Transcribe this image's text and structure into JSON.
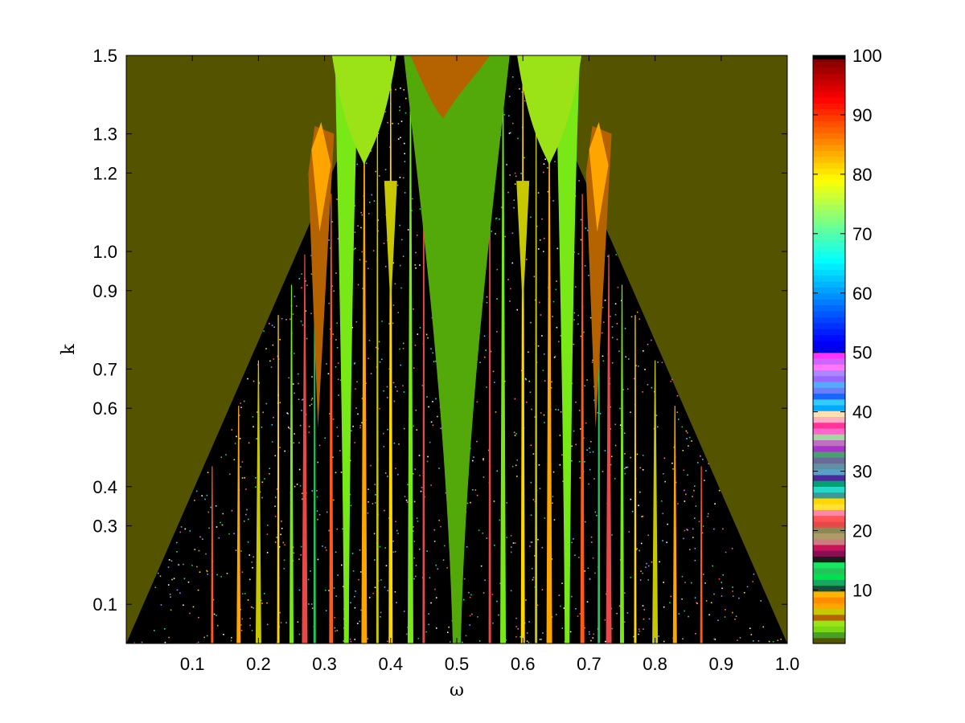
{
  "chart_data": {
    "type": "heatmap",
    "title": "",
    "xlabel": "ω",
    "ylabel": "k",
    "xlim": [
      0,
      1.0
    ],
    "ylim": [
      0,
      1.5
    ],
    "x_ticks": [
      {
        "value": 0.1,
        "label": "0.1"
      },
      {
        "value": 0.2,
        "label": "0.2"
      },
      {
        "value": 0.3,
        "label": "0.3"
      },
      {
        "value": 0.4,
        "label": "0.4"
      },
      {
        "value": 0.5,
        "label": "0.5"
      },
      {
        "value": 0.6,
        "label": "0.6"
      },
      {
        "value": 0.7,
        "label": "0.7"
      },
      {
        "value": 0.8,
        "label": "0.8"
      },
      {
        "value": 0.9,
        "label": "0.9"
      },
      {
        "value": 1.0,
        "label": "1.0"
      }
    ],
    "y_ticks": [
      {
        "value": 0.1,
        "label": "0.1"
      },
      {
        "value": 0.3,
        "label": "0.3"
      },
      {
        "value": 0.4,
        "label": "0.4"
      },
      {
        "value": 0.6,
        "label": "0.6"
      },
      {
        "value": 0.7,
        "label": "0.7"
      },
      {
        "value": 0.9,
        "label": "0.9"
      },
      {
        "value": 1.0,
        "label": "1.0"
      },
      {
        "value": 1.2,
        "label": "1.2"
      },
      {
        "value": 1.3,
        "label": "1.3"
      },
      {
        "value": 1.5,
        "label": "1.5"
      }
    ],
    "grid": false,
    "colorbar": {
      "range": [
        1,
        100
      ],
      "ticks": [
        {
          "value": 10,
          "label": "10"
        },
        {
          "value": 20,
          "label": "20"
        },
        {
          "value": 30,
          "label": "30"
        },
        {
          "value": 40,
          "label": "40"
        },
        {
          "value": 50,
          "label": "50"
        },
        {
          "value": 60,
          "label": "60"
        },
        {
          "value": 70,
          "label": "70"
        },
        {
          "value": 80,
          "label": "80"
        },
        {
          "value": 90,
          "label": "90"
        },
        {
          "value": 100,
          "label": "100"
        }
      ],
      "low_band_colors": [
        "#535300",
        "#47a025",
        "#79d811",
        "#9be316",
        "#b46300",
        "#c8c800",
        "#ffa500",
        "#ff8c00",
        "#ffb400",
        "#13503d",
        "#16a85c",
        "#00e050",
        "#23c45a",
        "#18e660",
        "#1c1c1c",
        "#8a0e54",
        "#c8135a",
        "#cb7c7c",
        "#b09a68",
        "#8a8a52",
        "#e84848",
        "#ff5555",
        "#ff88aa",
        "#ffe033",
        "#ffd700",
        "#3a9a9a",
        "#26d8c8",
        "#00a070",
        "#4b2a9a",
        "#58a0c8",
        "#5f8fa0",
        "#6a6a9a",
        "#4aa070",
        "#aa33cc",
        "#c070c0",
        "#a0d8a0",
        "#ff66cc",
        "#ff3399",
        "#ffb0c0",
        "#ffe0b0",
        "#00aaff",
        "#33ccff",
        "#1a66ff",
        "#6b7cff",
        "#55aaff",
        "#9966ff",
        "#aa88ff",
        "#ff77ff",
        "#cc66ff",
        "#ff33ff"
      ],
      "high_scale": "jet"
    },
    "background_color": "#535300",
    "main_lobes": [
      {
        "center": 0.5,
        "color": "#54a90a"
      },
      {
        "center": 0.333,
        "color": "#79e817"
      },
      {
        "center": 0.667,
        "color": "#79e817"
      }
    ]
  }
}
